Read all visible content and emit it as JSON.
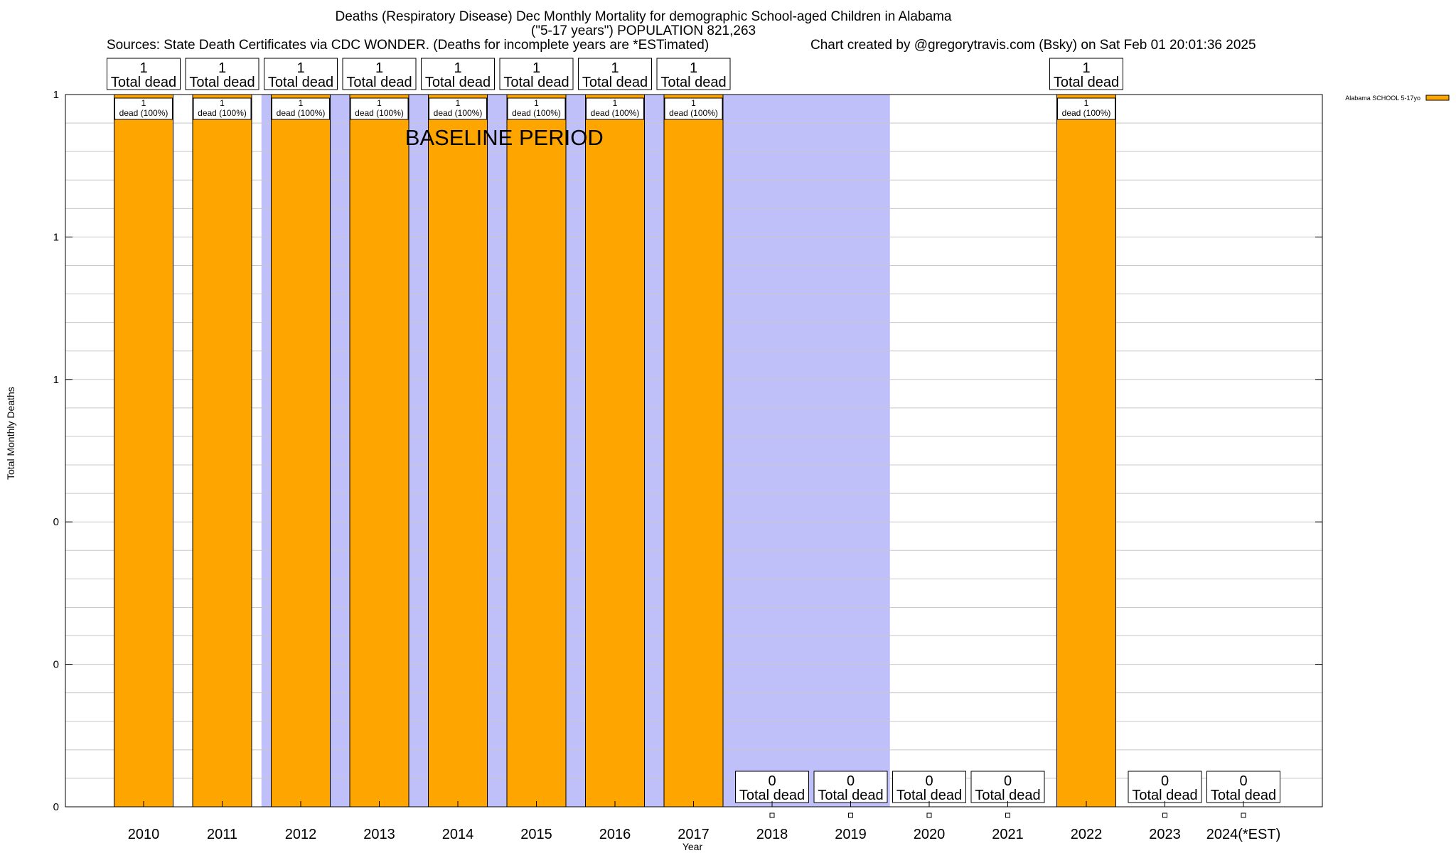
{
  "chart_data": {
    "type": "bar",
    "title": "Deaths (Respiratory Disease) Dec Monthly Mortality for demographic School-aged Children in Alabama",
    "subtitle": "(\"5-17 years\") POPULATION 821,263",
    "sources": "Sources: State Death Certificates via CDC WONDER. (Deaths for incomplete years are *ESTimated)",
    "credit": "Chart created by @gregorytravis.com (Bsky) on Sat Feb 01 20:01:36 2025",
    "xlabel": "Year",
    "ylabel": "Total Monthly Deaths",
    "ylim": [
      0,
      1
    ],
    "y_tick_labels": [
      "0",
      "0",
      "0",
      "1",
      "1",
      "1"
    ],
    "grid": true,
    "legend_position": "top-right",
    "categories": [
      "2010",
      "2011",
      "2012",
      "2013",
      "2014",
      "2015",
      "2016",
      "2017",
      "2018",
      "2019",
      "2020",
      "2021",
      "2022",
      "2023",
      "2024(*EST)"
    ],
    "series": [
      {
        "name": "Alabama SCHOOL 5-17yo",
        "color": "#ffa500",
        "values": [
          1,
          1,
          1,
          1,
          1,
          1,
          1,
          1,
          0,
          0,
          0,
          0,
          1,
          0,
          0
        ]
      }
    ],
    "total_labels": [
      "1",
      "1",
      "1",
      "1",
      "1",
      "1",
      "1",
      "1",
      "0",
      "0",
      "0",
      "0",
      "1",
      "0",
      "0"
    ],
    "total_label_suffix": "Total dead",
    "segment_labels": [
      "1",
      "1",
      "1",
      "1",
      "1",
      "1",
      "1",
      "1",
      "",
      "",
      "",
      "",
      "1",
      "",
      ""
    ],
    "segment_label_suffix": "dead (100%)",
    "baseline_annotation": "BASELINE PERIOD",
    "baseline_years": [
      "2012",
      "2013",
      "2014",
      "2015",
      "2016",
      "2017",
      "2018",
      "2019"
    ],
    "colors": {
      "bar": "#ffa500",
      "baseline_shade": "#bfbffa",
      "grid": "#c8c8c8"
    }
  }
}
